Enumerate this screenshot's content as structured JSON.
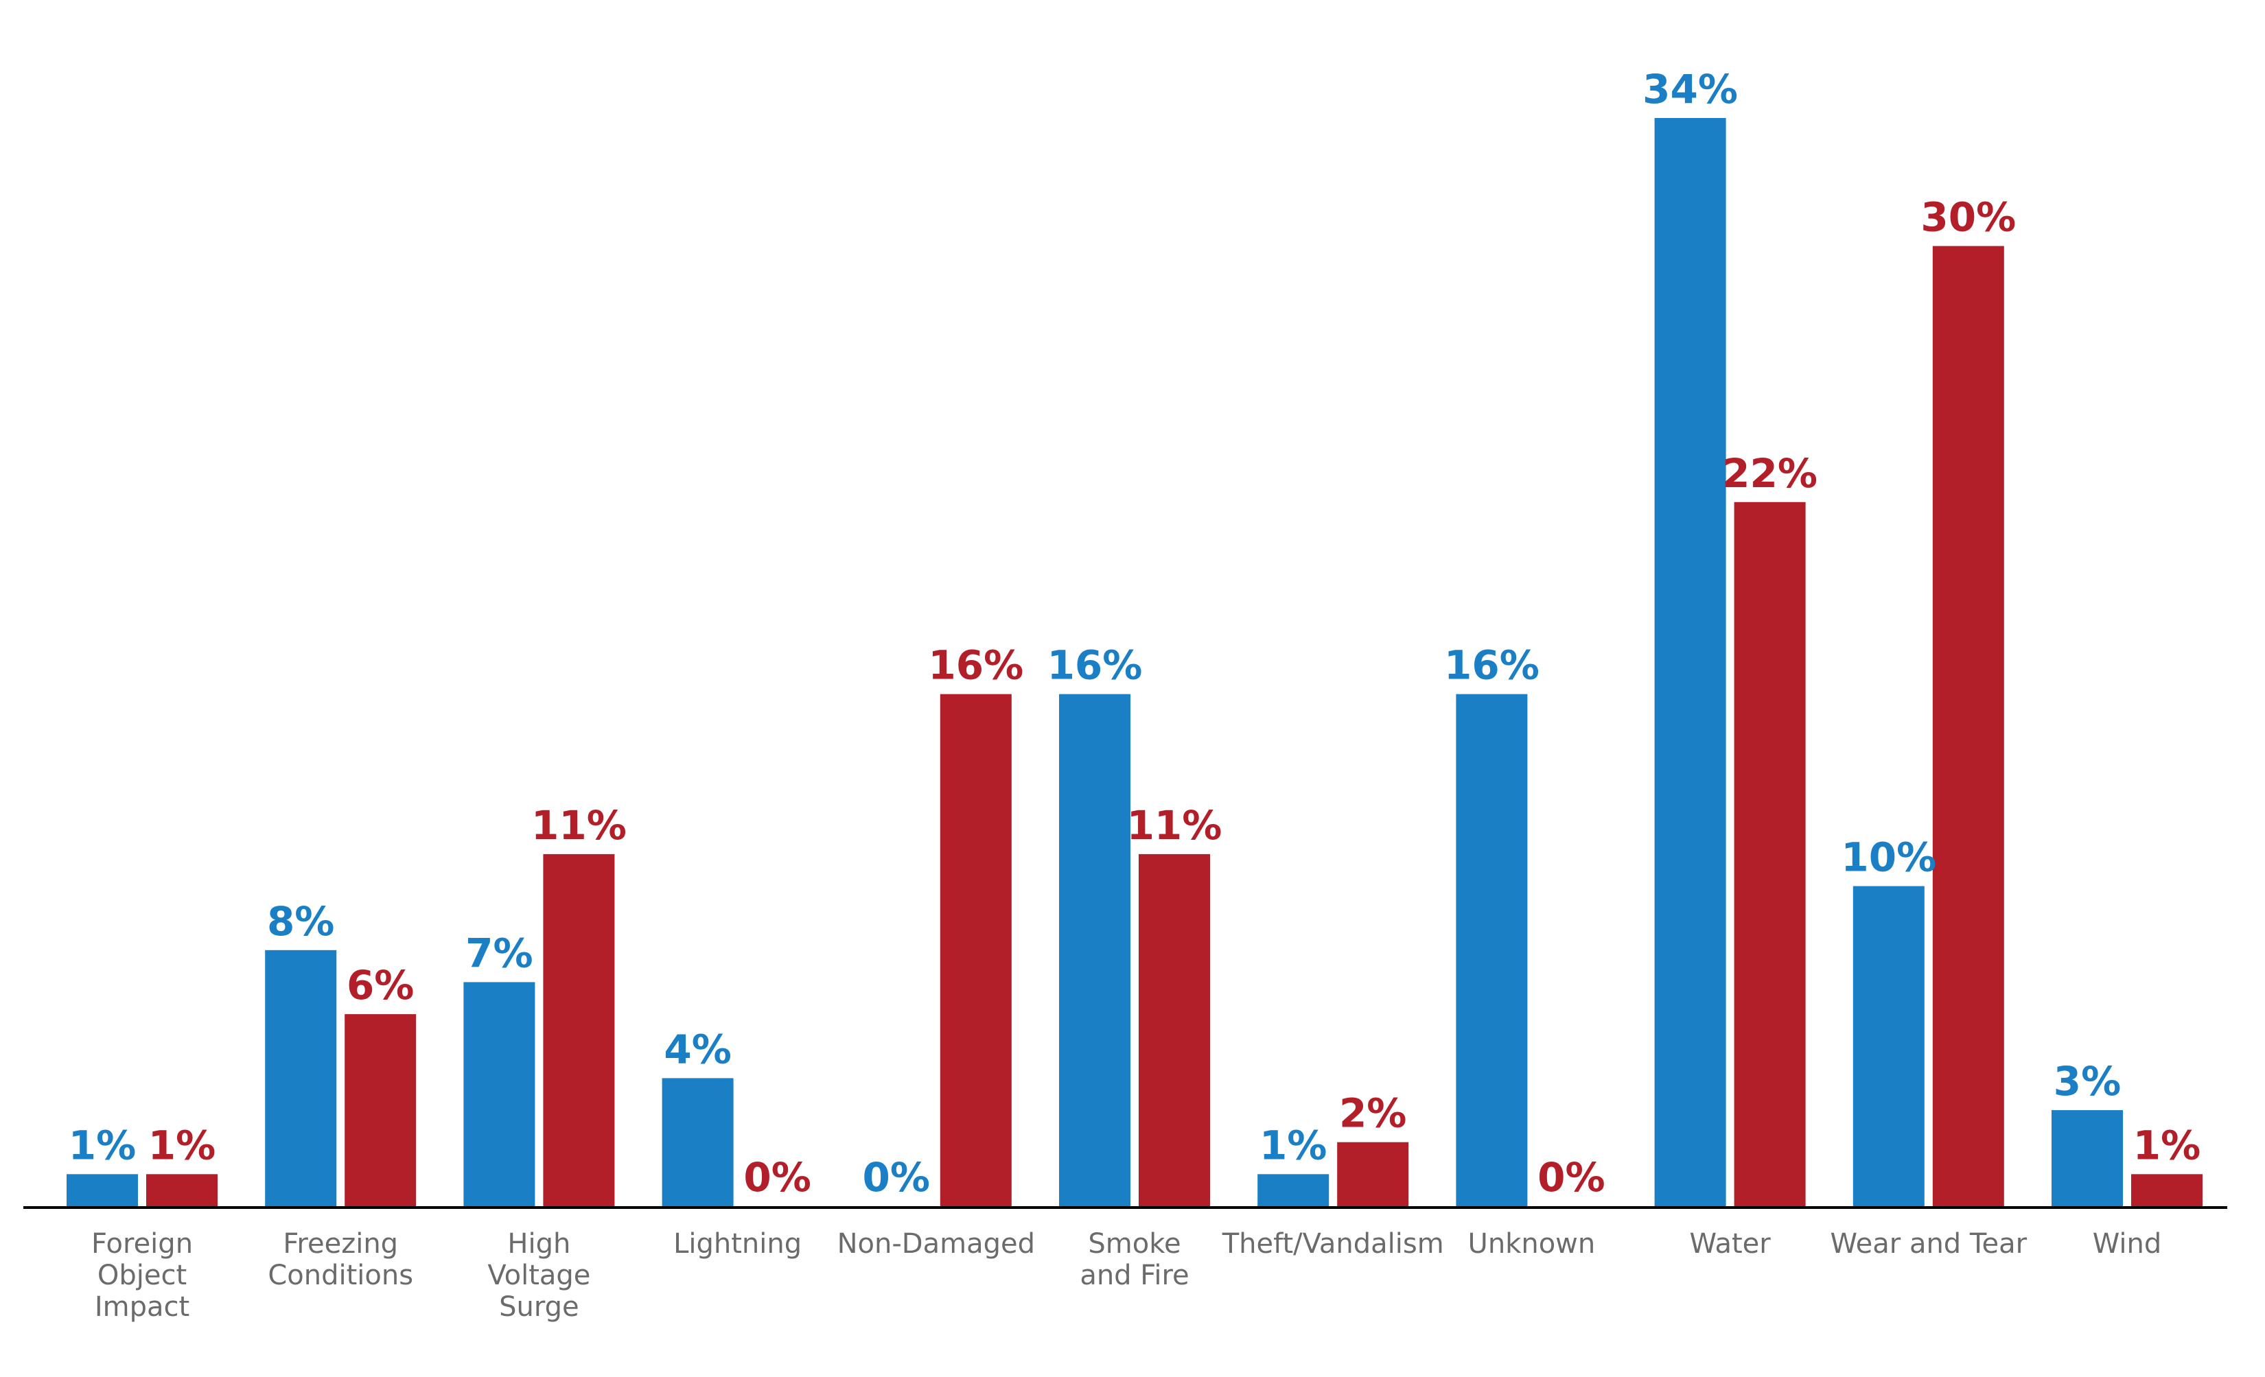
{
  "chart_data": {
    "type": "bar",
    "title": "",
    "xlabel": "",
    "ylabel": "",
    "ylim": [
      0,
      36
    ],
    "grid": false,
    "legend": "none",
    "categories": [
      [
        "Foreign",
        "Object",
        "Impact"
      ],
      [
        "Freezing",
        "Conditions"
      ],
      [
        "High",
        "Voltage",
        "Surge"
      ],
      [
        "Lightning"
      ],
      [
        "Non-Damaged"
      ],
      [
        "Smoke",
        "and Fire"
      ],
      [
        "Theft/Vandalism"
      ],
      [
        "Unknown"
      ],
      [
        "Water"
      ],
      [
        "Wear and Tear"
      ],
      [
        "Wind"
      ]
    ],
    "series": [
      {
        "color": "#1a7fc4",
        "values": [
          1,
          8,
          7,
          4,
          0,
          16,
          1,
          16,
          34,
          10,
          3
        ],
        "labels": [
          "1%",
          "8%",
          "7%",
          "4%",
          "0%",
          "16%",
          "1%",
          "16%",
          "34%",
          "10%",
          "3%"
        ]
      },
      {
        "color": "#b31f29",
        "values": [
          1,
          6,
          11,
          0,
          16,
          11,
          2,
          0,
          22,
          30,
          1
        ],
        "labels": [
          "1%",
          "6%",
          "11%",
          "0%",
          "16%",
          "11%",
          "2%",
          "0%",
          "22%",
          "30%",
          "1%"
        ]
      }
    ],
    "axis_color": "#000000",
    "category_label_color": "#6b6b6b"
  }
}
